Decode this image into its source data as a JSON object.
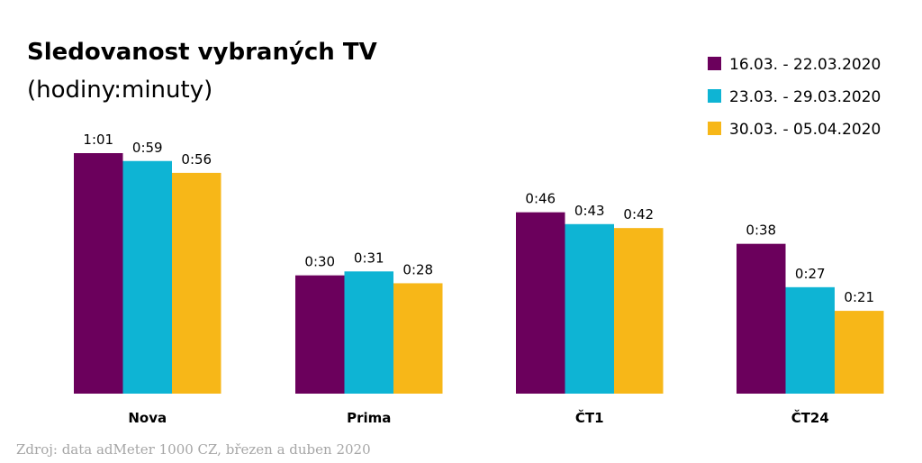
{
  "chart_data": {
    "type": "bar",
    "title": "Sledovanost vybraných TV",
    "subtitle": "(hodiny:minuty)",
    "categories": [
      "Nova",
      "Prima",
      "ČT1",
      "ČT24"
    ],
    "series": [
      {
        "name": "16.03. - 22.03.2020",
        "color": "#6b005c",
        "values": [
          61,
          30,
          46,
          38
        ],
        "labels": [
          "1:01",
          "0:30",
          "0:46",
          "0:38"
        ]
      },
      {
        "name": "23.03. - 29.03.2020",
        "color": "#0eb4d4",
        "values": [
          59,
          31,
          43,
          27
        ],
        "labels": [
          "0:59",
          "0:31",
          "0:43",
          "0:27"
        ]
      },
      {
        "name": "30.03. - 05.04.2020",
        "color": "#f7b718",
        "values": [
          56,
          28,
          42,
          21
        ],
        "labels": [
          "0:56",
          "0:28",
          "0:42",
          "0:21"
        ]
      }
    ],
    "ylim": [
      0,
      61
    ],
    "grid": false,
    "legend_position": "top-right",
    "source": "Zdroj: data adMeter 1000 CZ, březen a duben 2020"
  }
}
